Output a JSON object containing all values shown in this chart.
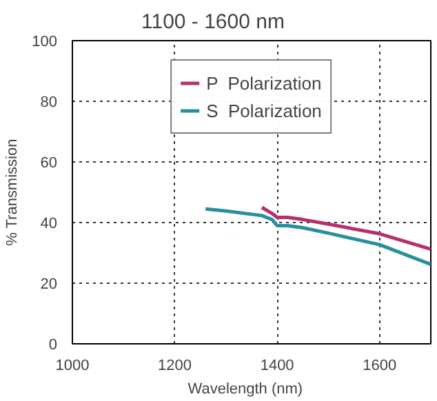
{
  "chart_data": {
    "type": "line",
    "title": "1100 - 1600 nm",
    "xlabel": "Wavelength    (nm)",
    "ylabel": "% Transmission",
    "xlim": [
      1000,
      1700
    ],
    "ylim": [
      0,
      100
    ],
    "xticks": [
      1000,
      1200,
      1400,
      1600
    ],
    "yticks": [
      0,
      20,
      40,
      60,
      80,
      100
    ],
    "grid": true,
    "line_style": "solid",
    "legend": "top",
    "marker": "none",
    "series": [
      {
        "name": "P  Polarization",
        "color": "#b8306a",
        "x": [
          1370,
          1390,
          1400,
          1420,
          1450,
          1500,
          1600,
          1700
        ],
        "values": [
          45,
          43,
          41.7,
          41.7,
          41,
          39.5,
          36.3,
          31.2
        ]
      },
      {
        "name": "S  Polarization",
        "color": "#2a8f9c",
        "x": [
          1260,
          1300,
          1370,
          1390,
          1400,
          1420,
          1450,
          1500,
          1600,
          1700
        ],
        "values": [
          44.5,
          43.8,
          42.3,
          41,
          39,
          39,
          38.3,
          36.5,
          32.7,
          26.2
        ]
      }
    ]
  }
}
